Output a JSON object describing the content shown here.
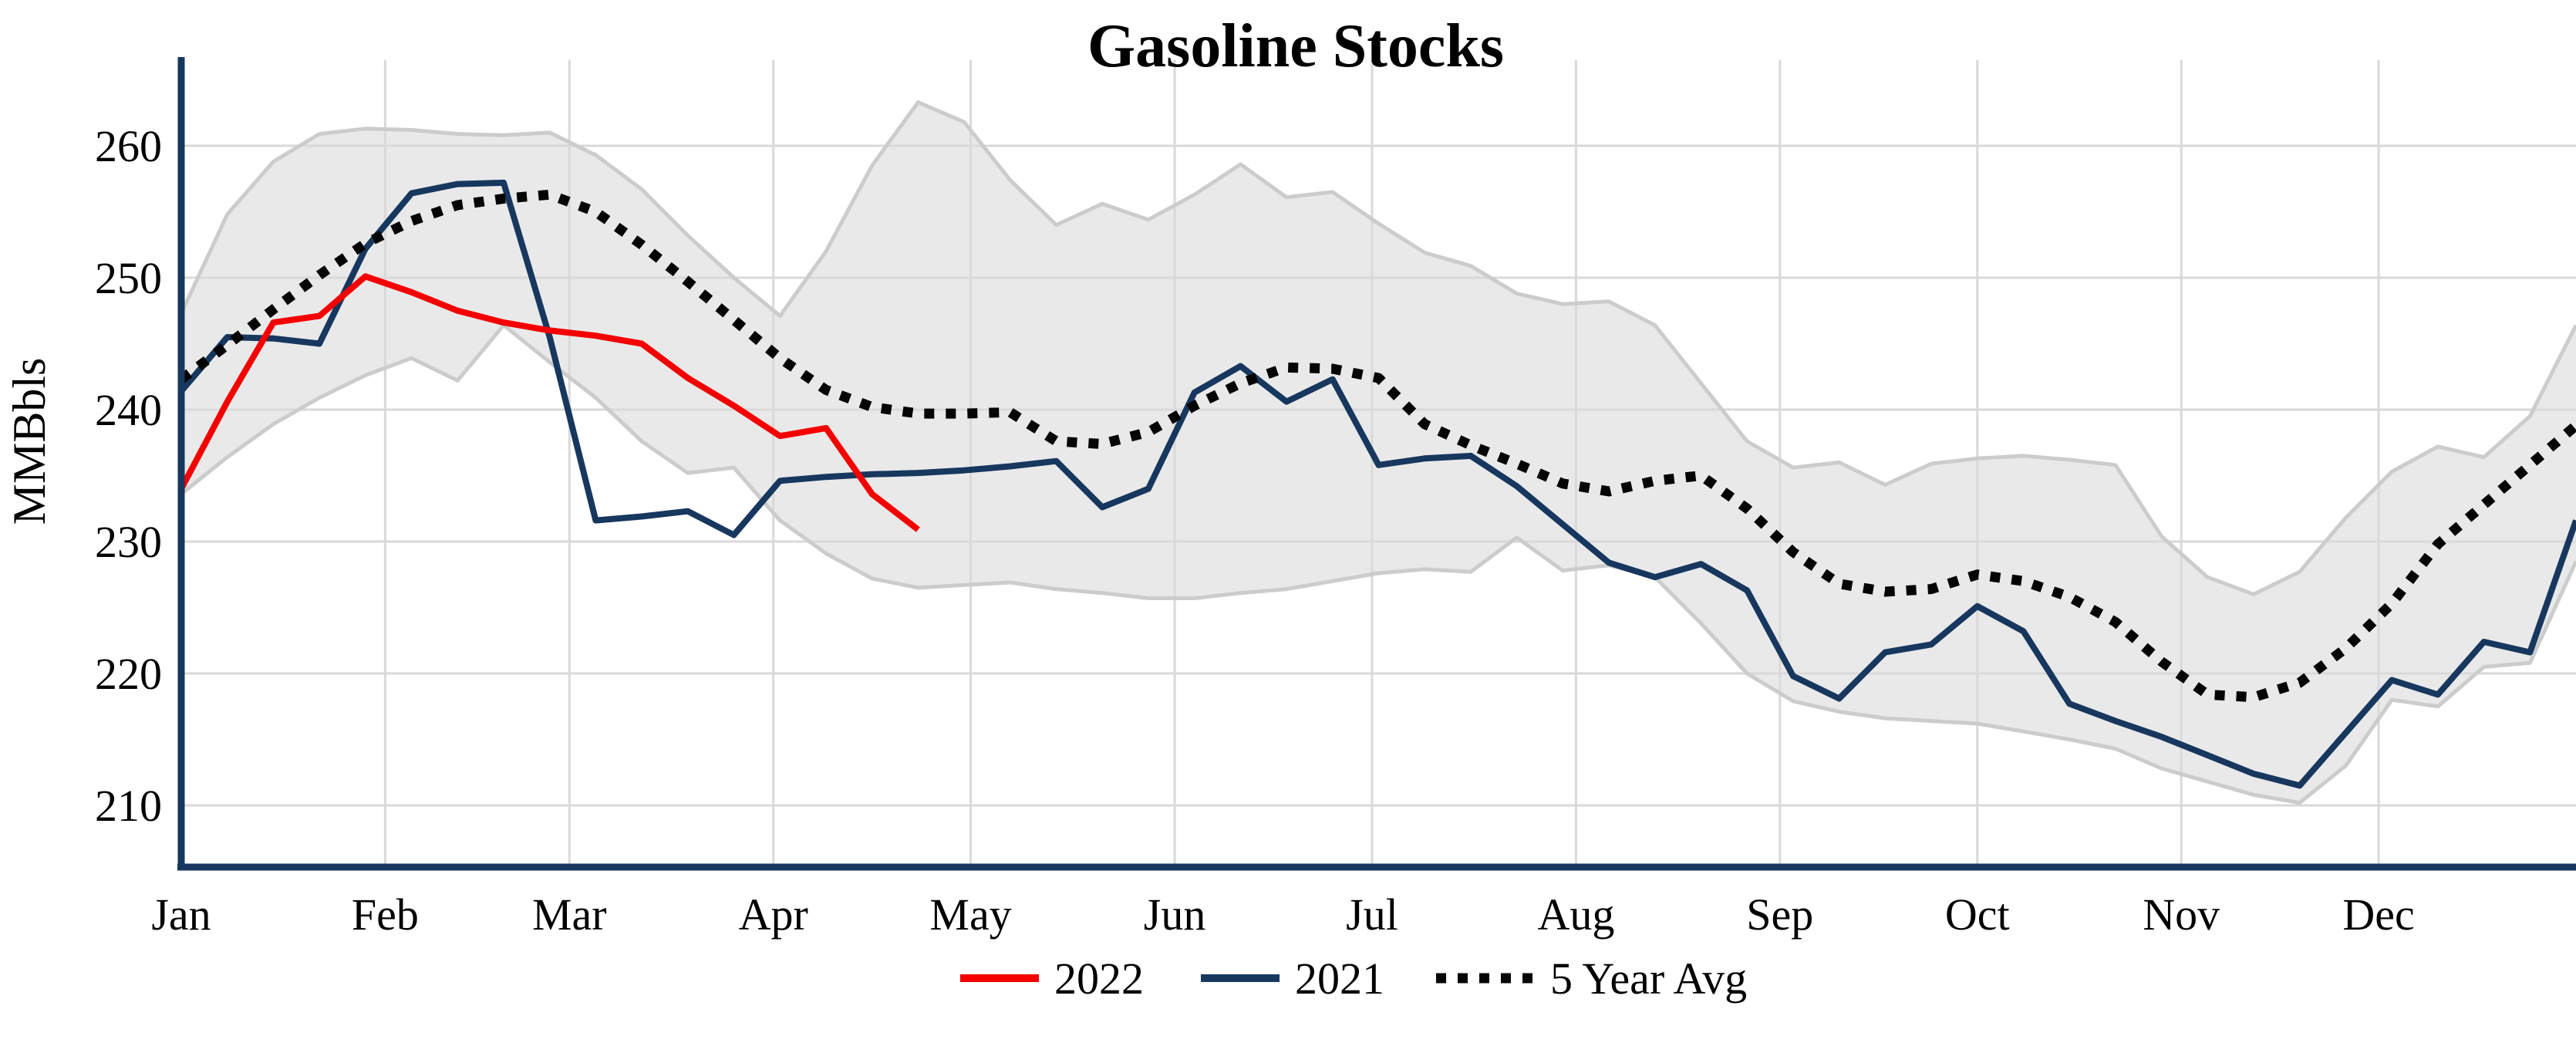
{
  "title": "Gasoline Stocks",
  "axes": {
    "ylabel": "MMBbls",
    "yticks": [
      260,
      250,
      240,
      230,
      220,
      210
    ],
    "ylim": [
      205.3,
      266.5
    ],
    "months": [
      "Jan",
      "Feb",
      "Mar",
      "Apr",
      "May",
      "Jun",
      "Jul",
      "Aug",
      "Sep",
      "Oct",
      "Nov",
      "Dec"
    ],
    "month_start_days": [
      0,
      31,
      59,
      90,
      120,
      151,
      181,
      212,
      243,
      273,
      304,
      334
    ],
    "grid": true
  },
  "legend": {
    "items": [
      {
        "label": "2022",
        "style": "solid",
        "color": "#f40000"
      },
      {
        "label": "2021",
        "style": "solid",
        "color": "#17375e"
      },
      {
        "label": "5 Year Avg",
        "style": "dotted",
        "color": "#050505"
      }
    ]
  },
  "colors": {
    "line_2022": "#f40000",
    "line_2021": "#17375e",
    "line_5yr": "#050505",
    "band_fill": "#e9e9e9",
    "band_edge": "#cccccc",
    "gridline": "#d9d9d9",
    "spine": "#17375e",
    "text": "#000000"
  },
  "chart_data": {
    "type": "line",
    "title": "Gasoline Stocks",
    "xlabel": "",
    "ylabel": "MMBbls",
    "x_unit": "day_of_year_weekly",
    "days_full": [
      0,
      7,
      14,
      21,
      28,
      35,
      42,
      49,
      56,
      63,
      70,
      77,
      84,
      91,
      98,
      105,
      112,
      119,
      126,
      133,
      140,
      147,
      154,
      161,
      168,
      175,
      182,
      189,
      196,
      203,
      210,
      217,
      224,
      231,
      238,
      245,
      252,
      259,
      266,
      273,
      280,
      287,
      294,
      301,
      308,
      315,
      322,
      329,
      336,
      343,
      350,
      357,
      364
    ],
    "days_2022": [
      0,
      7,
      14,
      21,
      28,
      35,
      42,
      49,
      56,
      63,
      70,
      77,
      84,
      91,
      98,
      105,
      112
    ],
    "series": [
      {
        "name": "2022",
        "values": [
          234.0,
          240.6,
          246.6,
          247.1,
          250.1,
          248.9,
          247.5,
          246.6,
          246.0,
          245.6,
          245.0,
          242.4,
          240.3,
          238.0,
          238.6,
          233.6,
          230.9
        ]
      },
      {
        "name": "2021",
        "values": [
          241.4,
          245.5,
          245.4,
          245.0,
          252.2,
          256.4,
          257.1,
          257.2,
          245.5,
          231.6,
          231.9,
          232.3,
          230.5,
          234.6,
          234.9,
          235.1,
          235.2,
          235.4,
          235.7,
          236.1,
          232.6,
          234.0,
          241.3,
          243.3,
          240.6,
          242.3,
          235.8,
          236.3,
          236.5,
          234.2,
          231.3,
          228.4,
          227.3,
          228.3,
          226.3,
          219.8,
          218.1,
          221.6,
          222.2,
          225.1,
          223.2,
          217.7,
          216.4,
          215.2,
          213.8,
          212.4,
          211.5,
          215.5,
          219.5,
          218.4,
          222.4,
          221.6,
          231.6
        ]
      },
      {
        "name": "5 Year Avg",
        "values": [
          242.3,
          244.9,
          247.6,
          250.2,
          252.6,
          254.3,
          255.5,
          256.0,
          256.3,
          255.0,
          252.5,
          249.7,
          246.8,
          243.9,
          241.5,
          240.2,
          239.7,
          239.7,
          239.8,
          237.6,
          237.4,
          238.3,
          240.3,
          242.0,
          243.2,
          243.1,
          242.4,
          238.9,
          237.3,
          235.9,
          234.4,
          233.8,
          234.6,
          235.0,
          232.5,
          229.2,
          226.8,
          226.2,
          226.4,
          227.5,
          227.0,
          225.8,
          223.9,
          220.9,
          218.4,
          218.2,
          219.3,
          221.9,
          225.3,
          229.8,
          232.8,
          235.8,
          238.8
        ]
      },
      {
        "name": "5 Year Range Upper",
        "values": [
          247.3,
          254.8,
          258.8,
          260.9,
          261.3,
          261.2,
          260.9,
          260.8,
          261.0,
          259.3,
          256.7,
          253.2,
          250.0,
          247.1,
          252.0,
          258.5,
          263.3,
          261.8,
          257.4,
          254.0,
          255.6,
          254.4,
          256.3,
          258.6,
          256.1,
          256.5,
          254.1,
          251.9,
          250.9,
          248.8,
          248.0,
          248.2,
          246.4,
          242.0,
          237.6,
          235.6,
          236.0,
          234.3,
          235.9,
          236.3,
          236.5,
          236.2,
          235.8,
          230.4,
          227.3,
          226.0,
          227.7,
          231.8,
          235.3,
          237.2,
          236.4,
          239.5,
          246.4
        ]
      },
      {
        "name": "5 Year Range Lower",
        "values": [
          233.6,
          236.4,
          238.9,
          240.9,
          242.6,
          243.9,
          242.2,
          246.4,
          243.6,
          240.9,
          237.6,
          235.2,
          235.6,
          231.6,
          229.1,
          227.2,
          226.5,
          226.7,
          226.9,
          226.4,
          226.1,
          225.7,
          225.7,
          226.1,
          226.4,
          227.0,
          227.6,
          227.9,
          227.7,
          230.3,
          227.8,
          228.2,
          227.3,
          223.8,
          220.0,
          217.9,
          217.1,
          216.6,
          216.4,
          216.2,
          215.6,
          215.0,
          214.3,
          212.8,
          211.8,
          210.8,
          210.2,
          213.0,
          218.0,
          217.5,
          220.5,
          220.8,
          228.5
        ]
      }
    ],
    "legend_position": "bottom-center",
    "band": {
      "upper_series": "5 Year Range Upper",
      "lower_series": "5 Year Range Lower",
      "fill": "#e9e9e9"
    }
  }
}
